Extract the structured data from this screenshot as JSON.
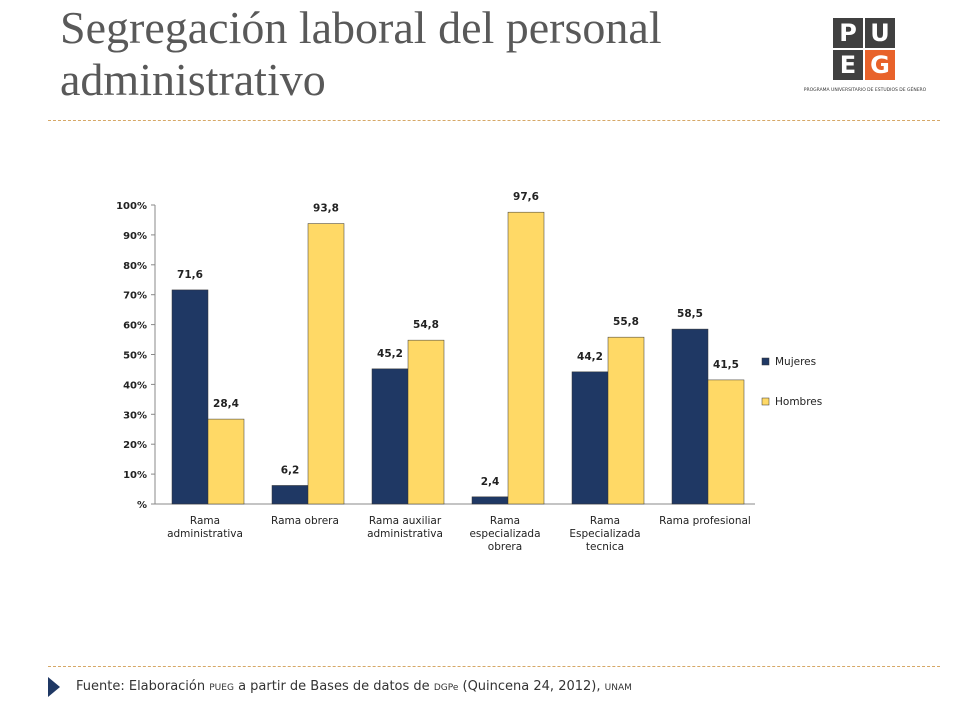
{
  "header": {
    "title": "Segregación laboral del personal administrativo",
    "logo": {
      "letters": [
        "P",
        "U",
        "E",
        "G"
      ],
      "subtitle": "PROGRAMA UNIVERSITARIO DE ESTUDIOS DE GÉNERO"
    }
  },
  "chart_data": {
    "type": "bar",
    "categories": [
      "Rama administrativa",
      "Rama obrera",
      "Rama auxiliar administrativa",
      "Rama especializada obrera",
      "Rama Especializada tecnica",
      "Rama profesional"
    ],
    "series": [
      {
        "name": "Mujeres",
        "color": "#1f3864",
        "values": [
          71.6,
          6.2,
          45.2,
          2.4,
          44.2,
          58.5
        ],
        "value_labels": [
          "71,6",
          "6,2",
          "45,2",
          "2,4",
          "44,2",
          "58,5"
        ]
      },
      {
        "name": "Hombres",
        "color": "#ffd966",
        "values": [
          28.4,
          93.8,
          54.8,
          97.6,
          55.8,
          41.5
        ],
        "value_labels": [
          "28,4",
          "93,8",
          "54,8",
          "97,6",
          "55,8",
          "41,5"
        ]
      }
    ],
    "ylim": [
      0,
      100
    ],
    "yticks": [
      {
        "value": 0,
        "label": "%"
      },
      {
        "value": 10,
        "label": "10%"
      },
      {
        "value": 20,
        "label": "20%"
      },
      {
        "value": 30,
        "label": "30%"
      },
      {
        "value": 40,
        "label": "40%"
      },
      {
        "value": 50,
        "label": "50%"
      },
      {
        "value": 60,
        "label": "60%"
      },
      {
        "value": 70,
        "label": "70%"
      },
      {
        "value": 80,
        "label": "80%"
      },
      {
        "value": 90,
        "label": "90%"
      },
      {
        "value": 100,
        "label": "100%"
      }
    ],
    "legend": "right"
  },
  "footer": {
    "parts": [
      "Fuente: Elaboración ",
      "PUEG",
      " a partir de Bases de datos de ",
      "DGPe",
      " (Quincena 24, 2012), ",
      "UNAM"
    ]
  }
}
